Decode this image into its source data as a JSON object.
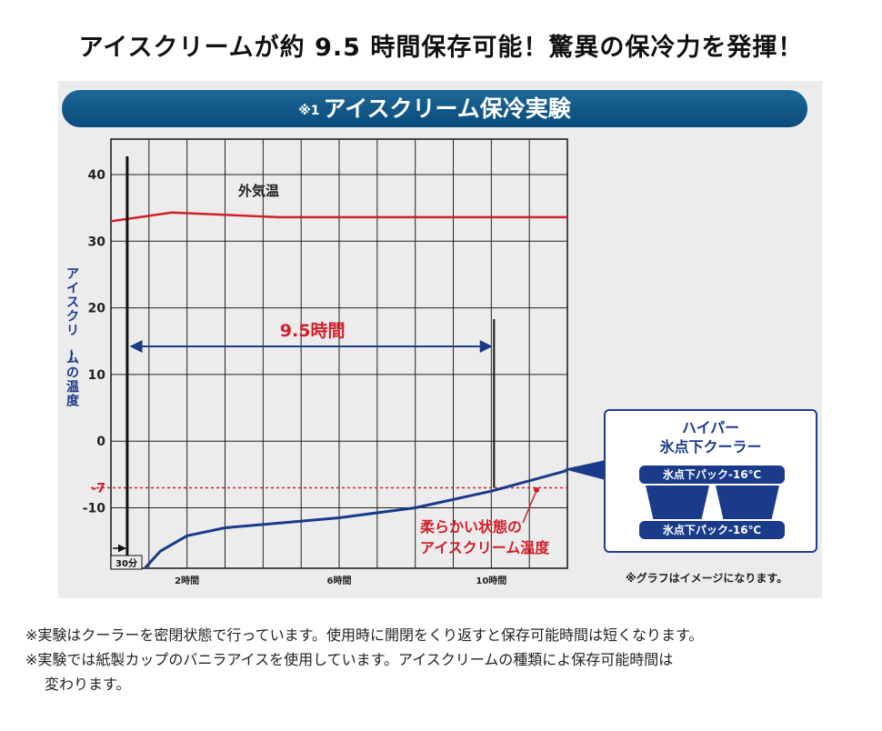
{
  "header": {
    "title": "アイスクリームが約 9.5 時間保存可能！驚異の保冷力を発揮！"
  },
  "banner": {
    "note_mark": "※1",
    "title": "アイスクリーム保冷実験"
  },
  "colors": {
    "outside_temp_line": "#d0202a",
    "ice_cream_line": "#1a3a8a",
    "banner": "#0a4c7b"
  },
  "chart_data": {
    "type": "line",
    "title": "",
    "xlabel": "",
    "ylabel": "アイスクリームの温度",
    "ylim": [
      -19,
      45
    ],
    "yticks": [
      40,
      30,
      20,
      10,
      0,
      -10
    ],
    "ytick_labels": [
      "40",
      "30",
      "20",
      "10",
      "0",
      "-10"
    ],
    "xlim": [
      0,
      12
    ],
    "xticks": [
      {
        "x": 2,
        "label": "2時間"
      },
      {
        "x": 6,
        "label": "6時間"
      },
      {
        "x": 10,
        "label": "10時間"
      }
    ],
    "grid": true,
    "series": [
      {
        "name": "外気温",
        "color": "#d0202a",
        "x": [
          0,
          1.6,
          4.4,
          12
        ],
        "y": [
          33,
          34.3,
          33.6,
          33.6
        ]
      },
      {
        "name": "柔らかい状態のアイスクリーム温度",
        "color": "#1a3a8a",
        "x": [
          0.9,
          1.3,
          2.0,
          3.0,
          4.0,
          6.0,
          8.0,
          10.0,
          12.0
        ],
        "y": [
          -19,
          -16.5,
          -14.2,
          -13.0,
          -12.5,
          -11.5,
          -10.0,
          -7.5,
          -4.4
        ]
      }
    ],
    "annotations": {
      "reference_line": {
        "y": -7,
        "label": "-7"
      },
      "start_marker": {
        "x": 0.5,
        "label": "30分"
      },
      "span": {
        "from": 0.5,
        "to": 10,
        "label": "9.5時間"
      }
    }
  },
  "cooler": {
    "title_line1": "ハイパー",
    "title_line2": "氷点下クーラー",
    "pack_top": "氷点下パック-16℃",
    "pack_bottom": "氷点下パック-16℃"
  },
  "graph_note": "※グラフはイメージになります。",
  "footnotes": {
    "line1": "※実験はクーラーを密閉状態で行っています。使用時に開閉をくり返すと保存可能時間は短くなります。",
    "line2": "※実験では紙製カップのバニラアイスを使用しています。アイスクリームの種類によ保存可能時間は",
    "line3": "変わります。"
  }
}
